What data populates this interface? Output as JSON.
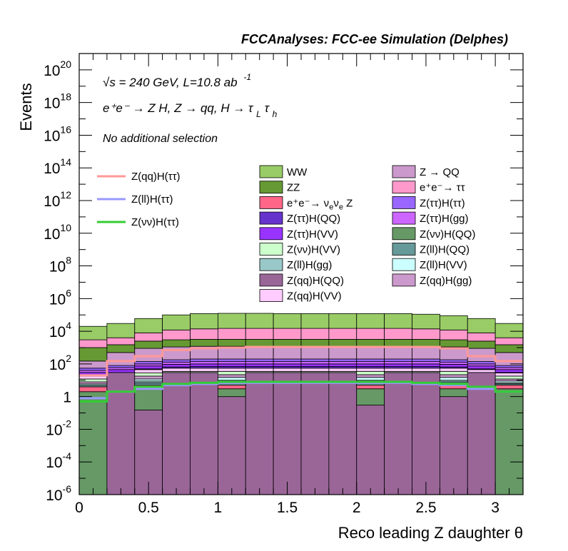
{
  "chart_data": {
    "type": "bar",
    "title": "FCCAnalyses: FCC-ee Simulation (Delphes)",
    "xlabel": "Reco leading Z daughter θ",
    "ylabel": "Events",
    "log_y": true,
    "xlim": [
      0,
      3.2
    ],
    "ylim": [
      1e-06,
      1e+21
    ],
    "legend_placement": "upper",
    "annotations": {
      "line1_prefix": "√s = 240 GeV, L=10.8 ab",
      "line1_sup": "-1",
      "line2": "e⁺e⁻ → Z H, Z → qq, H → τ",
      "line2_sub1": "L",
      "line2_tau": "τ",
      "line2_sub2": "h",
      "line3": "No additional selection"
    },
    "x_ticks": [
      {
        "value": 0,
        "label": "0"
      },
      {
        "value": 0.5,
        "label": "0.5"
      },
      {
        "value": 1,
        "label": "1"
      },
      {
        "value": 1.5,
        "label": "1.5"
      },
      {
        "value": 2,
        "label": "2"
      },
      {
        "value": 2.5,
        "label": "2.5"
      },
      {
        "value": 3,
        "label": "3"
      }
    ],
    "y_ticks": [
      {
        "value": 1e-06,
        "base": "10",
        "exp": "-6"
      },
      {
        "value": 0.0001,
        "base": "10",
        "exp": "-4"
      },
      {
        "value": 0.01,
        "base": "10",
        "exp": "-2"
      },
      {
        "value": 1,
        "base": "1",
        "exp": ""
      },
      {
        "value": 100.0,
        "base": "10",
        "exp": "2"
      },
      {
        "value": 10000.0,
        "base": "10",
        "exp": "4"
      },
      {
        "value": 1000000.0,
        "base": "10",
        "exp": "6"
      },
      {
        "value": 100000000.0,
        "base": "10",
        "exp": "8"
      },
      {
        "value": 10000000000.0,
        "base": "10",
        "exp": "10"
      },
      {
        "value": 1000000000000.0,
        "base": "10",
        "exp": "12"
      },
      {
        "value": 100000000000000.0,
        "base": "10",
        "exp": "14"
      },
      {
        "value": 1e+16,
        "base": "10",
        "exp": "16"
      },
      {
        "value": 1e+18,
        "base": "10",
        "exp": "18"
      },
      {
        "value": 1e+20,
        "base": "10",
        "exp": "20"
      }
    ],
    "bin_edges": [
      0,
      0.2,
      0.4,
      0.6,
      0.8,
      1.0,
      1.2,
      1.4,
      1.6,
      1.8,
      2.0,
      2.2,
      2.4,
      2.6,
      2.8,
      3.0,
      3.2
    ],
    "stack_tops": [
      {
        "name": "Z(qq)H(QQ)",
        "color": "#9a6698",
        "values": [
          0,
          30,
          0.15,
          30,
          30,
          1,
          30,
          30,
          30,
          30,
          0.3,
          30,
          30,
          1,
          30,
          0,
          0
        ]
      },
      {
        "name": "Z(νν)H(QQ)",
        "color": "#669966",
        "values": [
          2,
          3,
          3,
          3,
          3,
          3,
          3,
          3,
          3,
          3,
          3,
          3,
          3,
          3,
          3,
          3,
          0.01
        ]
      },
      {
        "name": "e⁺e⁻→ ν_eν_e Z",
        "color": "#ff6688",
        "values": [
          4,
          5,
          5,
          5,
          5,
          5,
          5,
          5,
          5,
          5,
          5,
          5,
          5,
          5,
          5,
          5,
          4
        ]
      },
      {
        "name": "Z(ll)H(QQ)",
        "color": "#669999",
        "values": [
          5,
          6,
          7,
          8,
          8,
          8,
          8,
          8,
          8,
          8,
          8,
          8,
          8,
          8,
          7,
          6,
          5
        ]
      },
      {
        "name": "Z(ll)H(gg)",
        "color": "#99c8c8",
        "values": [
          5,
          7,
          9,
          10,
          10,
          10,
          10,
          10,
          10,
          10,
          10,
          10,
          10,
          10,
          9,
          7,
          5
        ]
      },
      {
        "name": "Z(ll)H(VV)",
        "color": "#ccffff",
        "values": [
          6,
          9,
          12,
          15,
          15,
          15,
          15,
          15,
          15,
          15,
          15,
          15,
          15,
          15,
          12,
          9,
          6
        ]
      },
      {
        "name": "Z(qq)H(gg)",
        "color": "#cc99cc",
        "values": [
          8,
          12,
          18,
          22,
          22,
          22,
          22,
          22,
          22,
          22,
          22,
          22,
          22,
          22,
          18,
          12,
          8
        ]
      },
      {
        "name": "Z(νν)H(VV)",
        "color": "#ccffcc",
        "values": [
          12,
          18,
          28,
          35,
          35,
          35,
          35,
          35,
          35,
          35,
          35,
          35,
          35,
          35,
          28,
          18,
          12
        ]
      },
      {
        "name": "Z(qq)H(VV)",
        "color": "#ffccff",
        "values": [
          18,
          28,
          45,
          55,
          55,
          55,
          55,
          55,
          55,
          55,
          55,
          55,
          55,
          55,
          45,
          28,
          18
        ]
      },
      {
        "name": "Z(ττ)H(QQ)",
        "color": "#6633cc",
        "values": [
          20,
          30,
          50,
          65,
          70,
          70,
          70,
          70,
          70,
          70,
          70,
          70,
          70,
          65,
          50,
          30,
          20
        ]
      },
      {
        "name": "Z(ττ)H(VV)",
        "color": "#9933ff",
        "values": [
          30,
          45,
          75,
          95,
          100,
          100,
          100,
          100,
          100,
          100,
          100,
          100,
          100,
          95,
          75,
          45,
          30
        ]
      },
      {
        "name": "Z(ττ)H(gg)",
        "color": "#cc66ff",
        "values": [
          40,
          60,
          100,
          130,
          140,
          140,
          140,
          140,
          140,
          140,
          140,
          140,
          140,
          130,
          100,
          60,
          40
        ]
      },
      {
        "name": "Z(ττ)H(ττ)",
        "color": "#9966ff",
        "values": [
          55,
          80,
          140,
          180,
          200,
          200,
          200,
          200,
          200,
          200,
          200,
          200,
          200,
          180,
          140,
          80,
          55
        ]
      },
      {
        "name": "Z → QQ",
        "color": "#cc99cc",
        "values": [
          150,
          500,
          900,
          1100,
          1200,
          1200,
          1200,
          1200,
          1200,
          1200,
          1200,
          1200,
          1200,
          1100,
          900,
          500,
          150
        ]
      },
      {
        "name": "ZZ",
        "color": "#669933",
        "values": [
          1000,
          1500,
          2500,
          3000,
          3200,
          3200,
          3200,
          3200,
          3200,
          3200,
          3200,
          3200,
          3200,
          3000,
          2500,
          1500,
          1000
        ]
      },
      {
        "name": "e⁺e⁻→ ττ",
        "color": "#ff99cc",
        "values": [
          3000,
          4000,
          8000,
          12000,
          14000,
          15000,
          15000,
          15000,
          15000,
          15000,
          15000,
          15000,
          14000,
          12000,
          8000,
          4000,
          3000
        ]
      },
      {
        "name": "WW",
        "color": "#99cc66",
        "values": [
          20000,
          30000,
          60000,
          100000,
          120000,
          125000,
          125000,
          120000,
          120000,
          120000,
          120000,
          120000,
          110000,
          90000,
          60000,
          30000,
          6000
        ]
      }
    ],
    "signal_lines": [
      {
        "name": "Z(qq)H(ττ)",
        "color": "#ff9999",
        "values": [
          20,
          150,
          300,
          700,
          900,
          1000,
          1100,
          1100,
          1100,
          1100,
          1100,
          1100,
          1100,
          900,
          300,
          150,
          20
        ]
      },
      {
        "name": "Z(ll)H(ττ)",
        "color": "#9999ff",
        "values": [
          0.8,
          2,
          3,
          5,
          6,
          7,
          7,
          7,
          7,
          7,
          7,
          7,
          6,
          5,
          3,
          2,
          0.8
        ]
      },
      {
        "name": "Z(νν)H(ττ)",
        "color": "#33cc33",
        "values": [
          0.5,
          2,
          4,
          6,
          7,
          8,
          8,
          8,
          8,
          8,
          8,
          8,
          7,
          6,
          4,
          2,
          0.01
        ]
      }
    ],
    "legend": {
      "lines": [
        {
          "label": "Z(qq)H(ττ)",
          "color": "#ff9999"
        },
        {
          "label": "Z(ll)H(ττ)",
          "color": "#9999ff"
        },
        {
          "label": "Z(νν)H(ττ)",
          "color": "#33cc33"
        }
      ],
      "boxes_col1": [
        {
          "label": "WW",
          "color": "#99cc66"
        },
        {
          "label": "ZZ",
          "color": "#669933"
        },
        {
          "label": "e⁺e⁻→ ν",
          "label_tail": "ν",
          "sub": "e",
          "tail": " Z",
          "color": "#ff6688"
        },
        {
          "label": "Z(ττ)H(QQ)",
          "color": "#6633cc"
        },
        {
          "label": "Z(ττ)H(VV)",
          "color": "#9933ff"
        },
        {
          "label": "Z(νν)H(VV)",
          "color": "#ccffcc"
        },
        {
          "label": "Z(ll)H(gg)",
          "color": "#99c8c8"
        },
        {
          "label": "Z(qq)H(QQ)",
          "color": "#9a6698"
        },
        {
          "label": "Z(qq)H(VV)",
          "color": "#ffccff"
        }
      ],
      "boxes_col2": [
        {
          "label": "Z → QQ",
          "color": "#cc99cc"
        },
        {
          "label": "e⁺e⁻→ ττ",
          "color": "#ff99cc"
        },
        {
          "label": "Z(ττ)H(ττ)",
          "color": "#9966ff"
        },
        {
          "label": "Z(ττ)H(gg)",
          "color": "#cc66ff"
        },
        {
          "label": "Z(νν)H(QQ)",
          "color": "#669966"
        },
        {
          "label": "Z(ll)H(QQ)",
          "color": "#669999"
        },
        {
          "label": "Z(ll)H(VV)",
          "color": "#ccffff"
        },
        {
          "label": "Z(qq)H(gg)",
          "color": "#cc99cc"
        }
      ]
    }
  }
}
